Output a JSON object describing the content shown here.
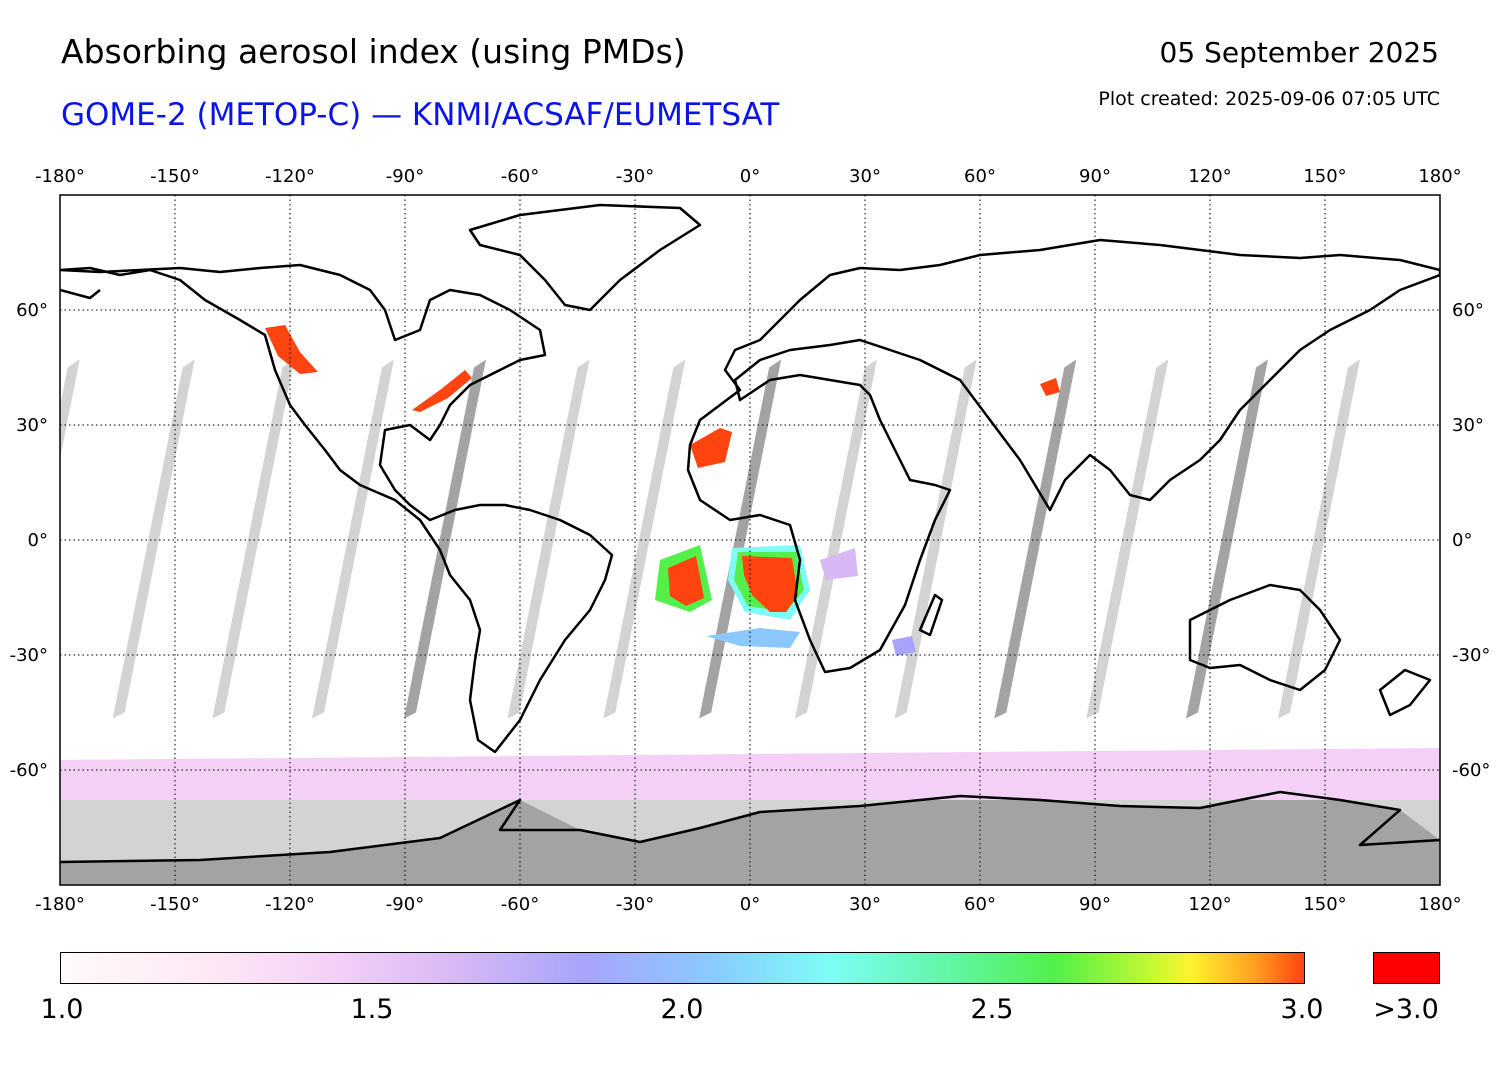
{
  "header": {
    "title": "Absorbing aerosol index (using PMDs)",
    "subtitle": "GOME-2 (METOP-C) — KNMI/ACSAF/EUMETSAT",
    "date": "05 September 2025",
    "plot_created": "Plot created: 2025-09-06 07:05 UTC"
  },
  "map": {
    "lon_ticks": [
      "-180°",
      "-150°",
      "-120°",
      "-90°",
      "-60°",
      "-30°",
      "0°",
      "30°",
      "60°",
      "90°",
      "120°",
      "150°",
      "180°"
    ],
    "lat_ticks": [
      "60°",
      "30°",
      "0°",
      "-30°",
      "-60°"
    ],
    "no_data_color": "#d3d3d3",
    "night_color": "#a3a3a3",
    "high_index_color": "#ff4410"
  },
  "colorbar": {
    "labels": [
      "1.0",
      "1.5",
      "2.0",
      "2.5",
      "3.0"
    ],
    "over_label": ">3.0",
    "over_color": "#ff0000"
  }
}
